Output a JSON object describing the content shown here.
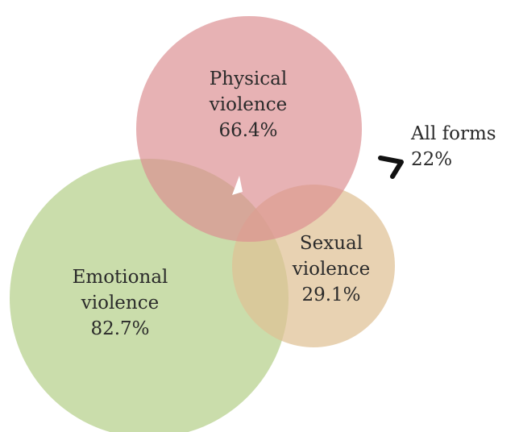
{
  "diagram": {
    "sets": [
      {
        "id": "physical",
        "line1": "Physical",
        "line2": "violence",
        "value": "66.4%",
        "color": "#dc8d91"
      },
      {
        "id": "emotional",
        "line1": "Emotional",
        "line2": "violence",
        "value": "82.7%",
        "color": "#b5d08a"
      },
      {
        "id": "sexual",
        "line1": "Sexual",
        "line2": "violence",
        "value": "29.1%",
        "color": "#e0c49a"
      }
    ],
    "overlap": {
      "line1": "All forms",
      "value": "22%"
    },
    "pointer_color": "#111111"
  }
}
